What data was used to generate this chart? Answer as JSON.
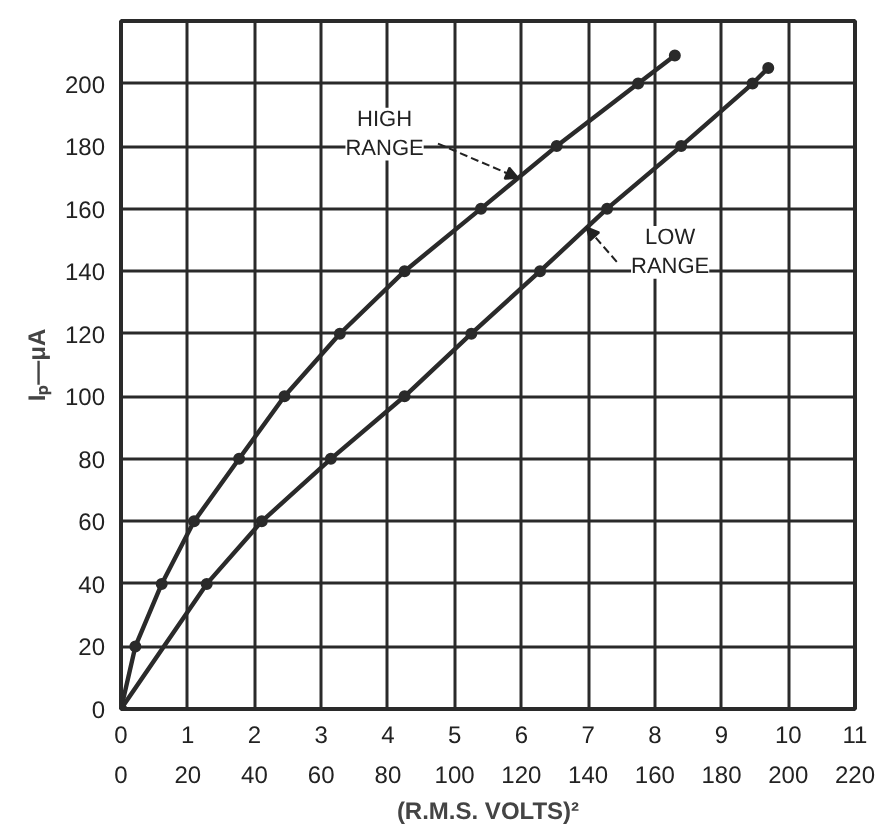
{
  "chart_data": {
    "type": "line",
    "xlabel": "(R.M.S. VOLTS)²",
    "ylabel": "Iₚ—μA",
    "xlim": [
      0,
      220
    ],
    "xticks": [
      0,
      20,
      40,
      60,
      80,
      100,
      120,
      140,
      160,
      180,
      200,
      220
    ],
    "x2lim": [
      0,
      11
    ],
    "x2ticks": [
      0,
      1,
      2,
      3,
      4,
      5,
      6,
      7,
      8,
      9,
      10,
      11
    ],
    "ylim": [
      0,
      220
    ],
    "yticks": [
      0,
      20,
      40,
      60,
      80,
      100,
      120,
      140,
      160,
      180,
      200
    ],
    "grid": true,
    "marker": "circle",
    "line_style": "solid",
    "series": [
      {
        "color": "#2a2a2a",
        "x": [
          0,
          4.3,
          12.2,
          21.9,
          35.4,
          49,
          65.6,
          85,
          107.9,
          130.6,
          155,
          166
        ],
        "values": [
          0,
          20,
          40,
          60,
          80,
          100,
          120,
          140,
          160,
          180,
          200,
          209
        ]
      },
      {
        "color": "#2a2a2a",
        "x": [
          0,
          25.7,
          42.2,
          62.9,
          85,
          105,
          125.6,
          145.7,
          167.9,
          189.3,
          194
        ],
        "values": [
          0,
          40,
          60,
          80,
          100,
          120,
          140,
          160,
          180,
          200,
          205
        ]
      }
    ],
    "annotations": [
      {
        "text": "HIGH\nRANGE",
        "x": 119,
        "y": 169.8
      },
      {
        "text": "LOW\nRANGE",
        "x": 139.6,
        "y": 154
      }
    ]
  }
}
